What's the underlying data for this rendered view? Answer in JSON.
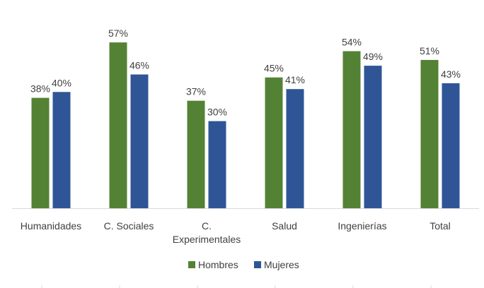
{
  "chart_data": {
    "type": "bar",
    "categories": [
      "Humanidades",
      "C. Sociales",
      "C. Experimentales",
      "Salud",
      "Ingenierías",
      "Total"
    ],
    "category_lines": [
      [
        "Humanidades"
      ],
      [
        "C. Sociales"
      ],
      [
        "C.",
        "Experimentales"
      ],
      [
        "Salud"
      ],
      [
        "Ingenierías"
      ],
      [
        "Total"
      ]
    ],
    "series": [
      {
        "name": "Hombres",
        "color": "#548235",
        "values": [
          38,
          57,
          37,
          45,
          54,
          51
        ],
        "labels": [
          "38%",
          "57%",
          "37%",
          "45%",
          "54%",
          "51%"
        ]
      },
      {
        "name": "Mujeres",
        "color": "#2F5597",
        "values": [
          40,
          46,
          30,
          41,
          49,
          43
        ],
        "labels": [
          "40%",
          "46%",
          "30%",
          "41%",
          "49%",
          "43%"
        ]
      }
    ],
    "ylim": [
      0,
      100
    ],
    "value_suffix": "%",
    "legend_position": "bottom",
    "grid": false
  }
}
